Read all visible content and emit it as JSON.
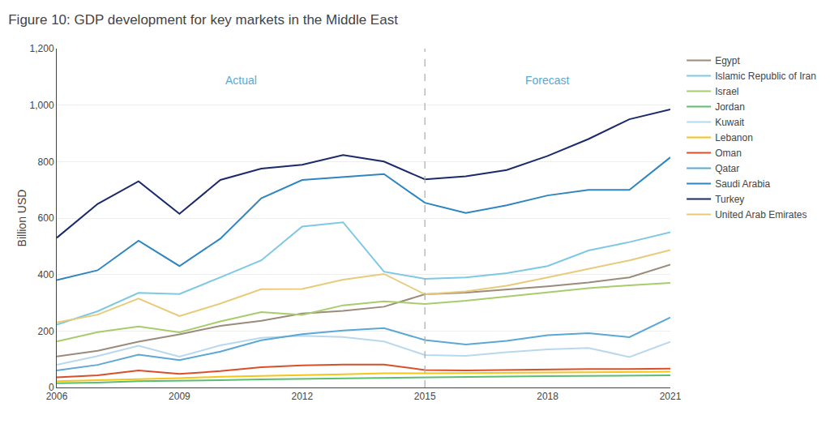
{
  "chart_data": {
    "type": "line",
    "title": "Figure 10: GDP development for key markets in the Middle East",
    "y_label": "Billion USD",
    "annotations": [
      "Actual",
      "Forecast"
    ],
    "divider": 2015,
    "x": [
      2006,
      2007,
      2008,
      2009,
      2010,
      2011,
      2012,
      2013,
      2014,
      2015,
      2016,
      2017,
      2018,
      2019,
      2020,
      2021
    ],
    "series": [
      {
        "name": "Egypt",
        "color": "#9B8B7A",
        "values": [
          110,
          130,
          162,
          188,
          218,
          236,
          262,
          271,
          286,
          330,
          336,
          346,
          358,
          372,
          390,
          435
        ]
      },
      {
        "name": "Islamic Republic of Iran",
        "color": "#7EC8E3",
        "values": [
          222,
          270,
          335,
          331,
          390,
          450,
          570,
          585,
          410,
          385,
          390,
          405,
          430,
          485,
          515,
          550
        ]
      },
      {
        "name": "Israel",
        "color": "#A8CC6A",
        "values": [
          163,
          196,
          216,
          195,
          234,
          267,
          257,
          291,
          305,
          296,
          307,
          322,
          338,
          352,
          362,
          370
        ]
      },
      {
        "name": "Jordan",
        "color": "#5BBD72",
        "values": [
          15,
          17,
          22,
          23,
          26,
          29,
          31,
          33,
          35,
          37,
          38,
          39,
          40,
          41,
          42,
          43
        ]
      },
      {
        "name": "Kuwait",
        "color": "#B8D8ED",
        "values": [
          80,
          111,
          148,
          109,
          149,
          176,
          183,
          179,
          163,
          115,
          112,
          125,
          135,
          140,
          108,
          162
        ]
      },
      {
        "name": "Lebanon",
        "color": "#F5C518",
        "values": [
          22,
          25,
          29,
          33,
          38,
          40,
          44,
          47,
          50,
          50,
          51,
          52,
          53,
          54,
          55,
          56
        ]
      },
      {
        "name": "Oman",
        "color": "#D94F2A",
        "values": [
          36,
          43,
          60,
          48,
          58,
          72,
          78,
          81,
          81,
          62,
          60,
          62,
          64,
          65,
          65,
          67
        ]
      },
      {
        "name": "Qatar",
        "color": "#5BA8D4",
        "values": [
          60,
          80,
          116,
          97,
          127,
          167,
          189,
          202,
          210,
          168,
          152,
          165,
          185,
          192,
          178,
          248
        ]
      },
      {
        "name": "Saudi Arabia",
        "color": "#2E86C1",
        "values": [
          380,
          415,
          520,
          430,
          527,
          670,
          735,
          745,
          756,
          654,
          618,
          645,
          680,
          700,
          700,
          815
        ]
      },
      {
        "name": "Turkey",
        "color": "#1B2A6B",
        "values": [
          530,
          650,
          730,
          615,
          735,
          775,
          789,
          823,
          800,
          737,
          748,
          770,
          820,
          880,
          950,
          985
        ]
      },
      {
        "name": "United Arab Emirates",
        "color": "#E8CB7A",
        "values": [
          230,
          258,
          315,
          253,
          297,
          348,
          349,
          382,
          402,
          330,
          340,
          360,
          390,
          420,
          450,
          487
        ]
      }
    ],
    "xlim": [
      2006,
      2021
    ],
    "xticks": [
      2006,
      2009,
      2012,
      2015,
      2018,
      2021
    ],
    "ylim": [
      0,
      1200
    ],
    "yticks": [
      0,
      200,
      400,
      600,
      800,
      {
        "value": 1000,
        "label": "1,000"
      },
      {
        "value": 1200,
        "label": "1,200"
      }
    ],
    "grid": true,
    "legend": "right"
  }
}
